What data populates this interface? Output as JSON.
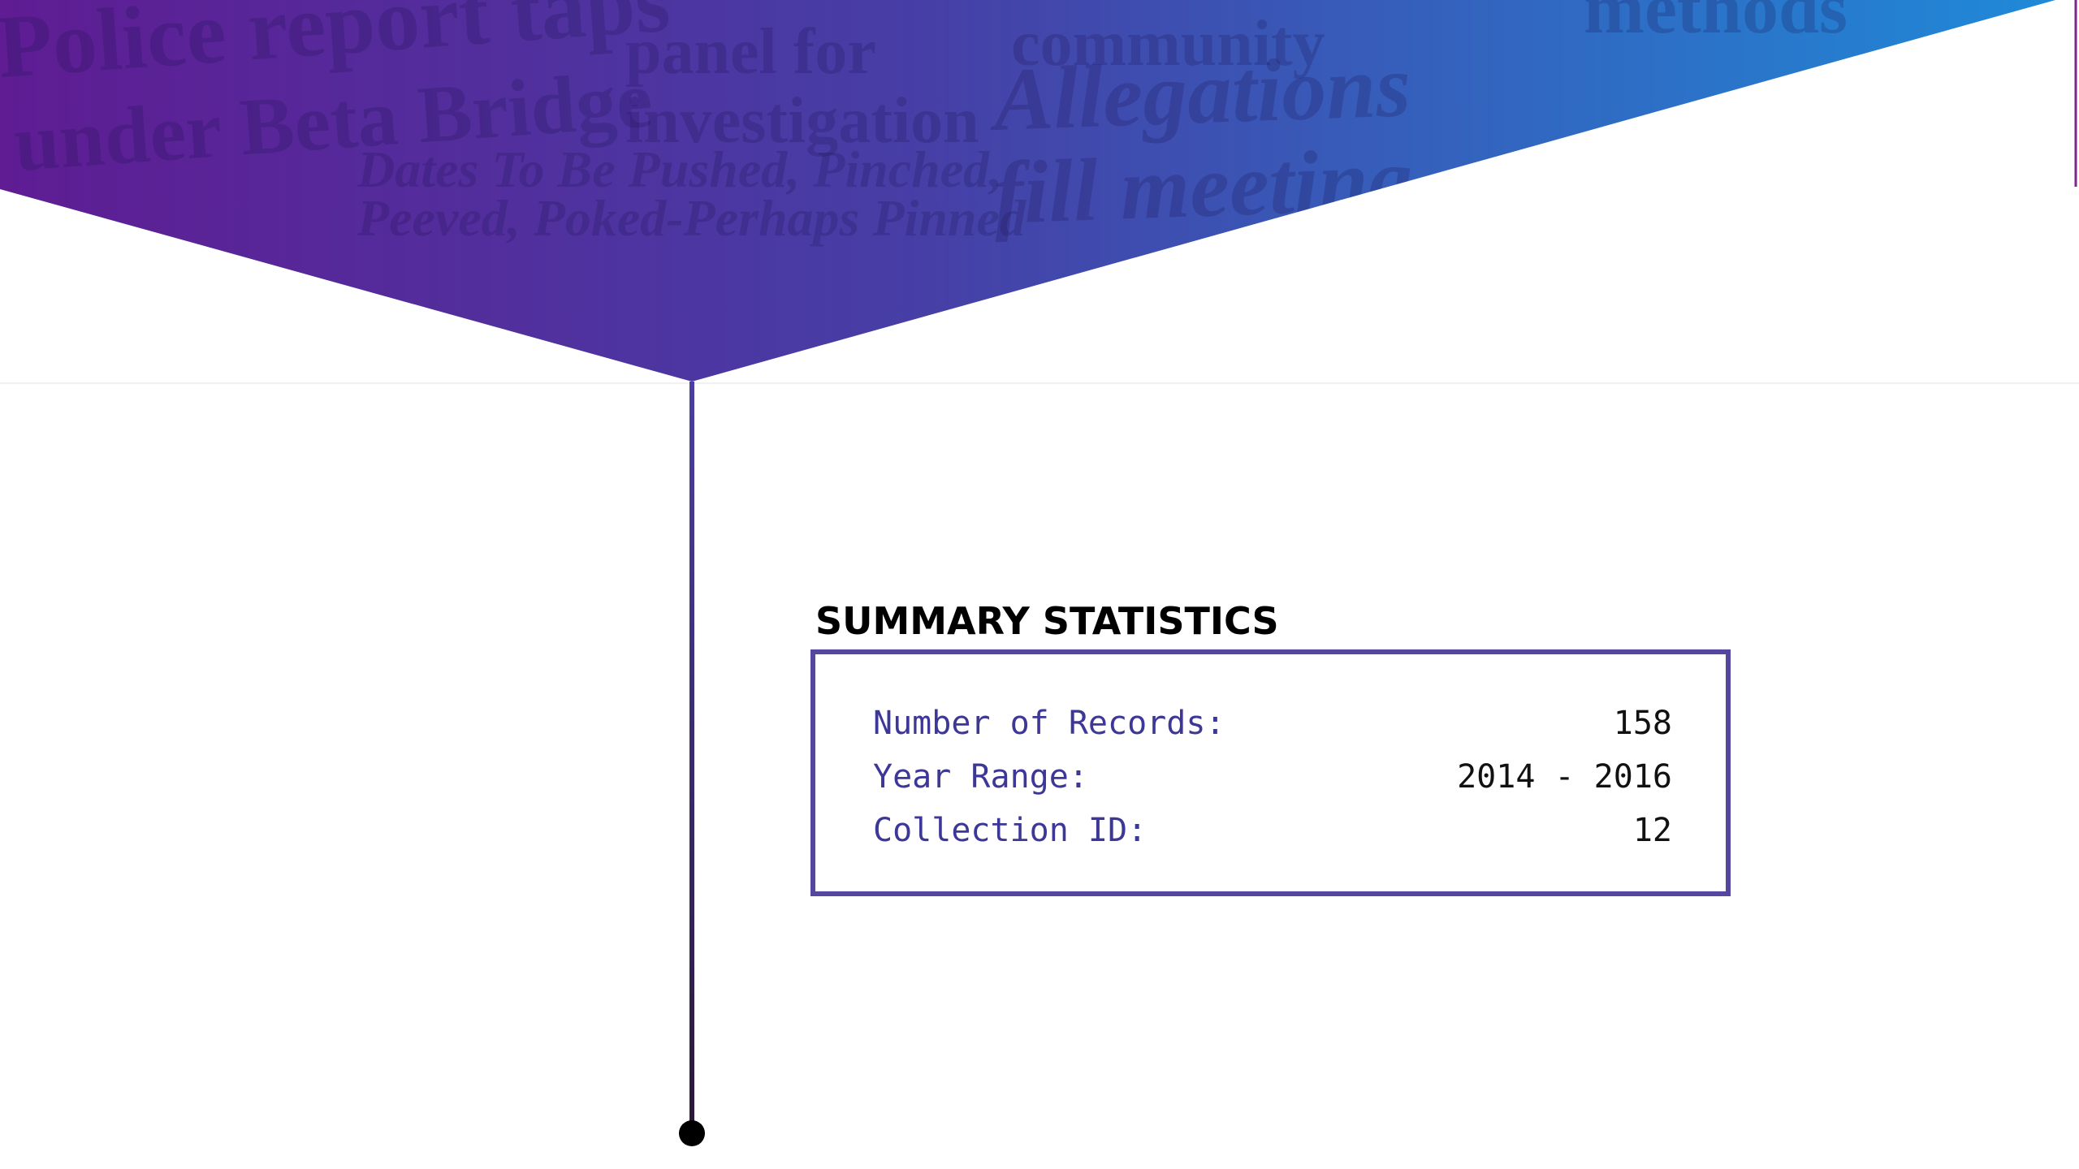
{
  "header": {
    "headlines": [
      "Police report taps",
      "under Beta Bridge",
      "panel for",
      "investigation",
      "Dates To Be Pushed, Pinched,",
      "Peeved, Poked-Perhaps Pinned",
      "community",
      "Allegations",
      "fill meeting",
      "methods"
    ]
  },
  "summary": {
    "title": "SUMMARY STATISTICS",
    "rows": [
      {
        "label": "Number of Records:",
        "value": 158
      },
      {
        "label": "Year Range:",
        "value": "2014 - 2016"
      },
      {
        "label": "Collection ID:",
        "value": 12
      }
    ]
  }
}
